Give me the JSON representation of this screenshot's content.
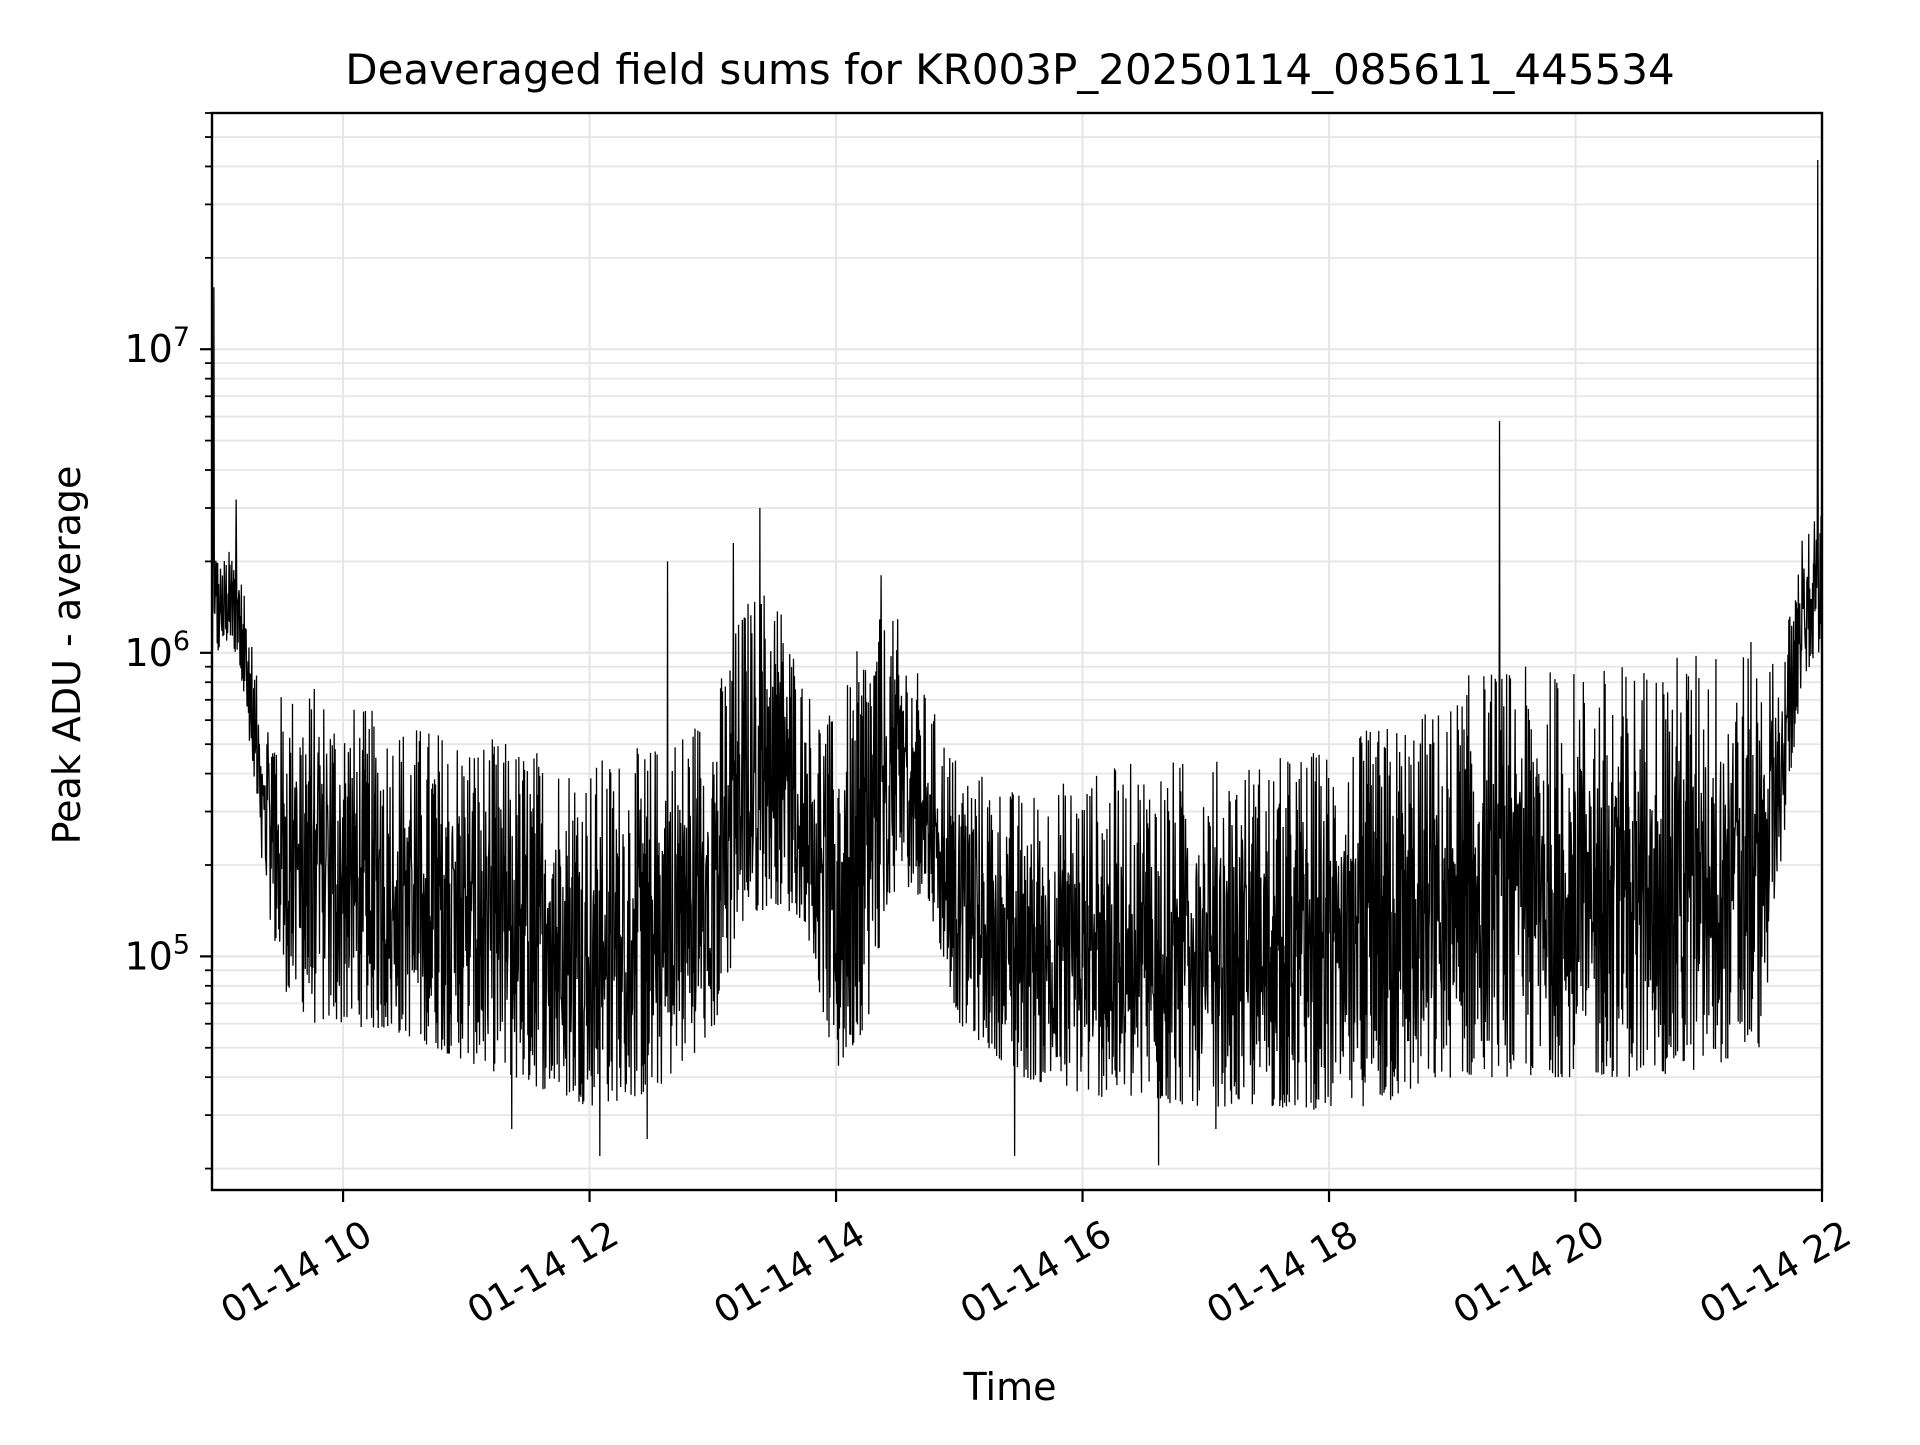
{
  "chart_data": {
    "type": "line",
    "title": "Deaveraged field sums for KR003P_20250114_085611_445534",
    "xlabel": "Time",
    "ylabel": "Peak ADU - average",
    "x_axis": {
      "kind": "datetime",
      "range": [
        "2025-01-14T08:56:11",
        "2025-01-14T22:00:00"
      ],
      "ticks": [
        {
          "value": "2025-01-14T10:00",
          "label": "01-14 10"
        },
        {
          "value": "2025-01-14T12:00",
          "label": "01-14 12"
        },
        {
          "value": "2025-01-14T14:00",
          "label": "01-14 14"
        },
        {
          "value": "2025-01-14T16:00",
          "label": "01-14 16"
        },
        {
          "value": "2025-01-14T18:00",
          "label": "01-14 18"
        },
        {
          "value": "2025-01-14T20:00",
          "label": "01-14 20"
        },
        {
          "value": "2025-01-14T22:00",
          "label": "01-14 22"
        }
      ],
      "tick_rotation_deg": 30
    },
    "y_axis": {
      "scale": "log",
      "range": [
        17000,
        60000000
      ],
      "ticks": [
        {
          "value": 100000,
          "base": "10",
          "exp": "5"
        },
        {
          "value": 1000000,
          "base": "10",
          "exp": "6"
        },
        {
          "value": 10000000,
          "base": "10",
          "exp": "7"
        }
      ]
    },
    "grid": true,
    "grid_color": "#e6e6e6",
    "line_color": "#000000",
    "legend": "none",
    "envelope": {
      "times": [
        "08:56",
        "09:00",
        "09:05",
        "09:10",
        "09:20",
        "09:30",
        "09:45",
        "10:00",
        "10:30",
        "11:00",
        "11:30",
        "12:00",
        "12:30",
        "13:00",
        "13:15",
        "13:30",
        "13:45",
        "14:00",
        "14:15",
        "14:30",
        "14:45",
        "15:00",
        "15:30",
        "16:00",
        "16:30",
        "17:00",
        "17:30",
        "18:00",
        "18:30",
        "19:00",
        "19:10",
        "19:30",
        "20:00",
        "20:30",
        "21:00",
        "21:30",
        "21:40",
        "21:50",
        "22:00"
      ],
      "low": [
        900000,
        1000000,
        1100000,
        900000,
        200000,
        80000,
        60000,
        60000,
        55000,
        45000,
        38000,
        32000,
        35000,
        55000,
        130000,
        150000,
        130000,
        40000,
        60000,
        180000,
        150000,
        60000,
        40000,
        35000,
        33000,
        32000,
        32000,
        31000,
        33000,
        40000,
        40000,
        40000,
        40000,
        40000,
        42000,
        50000,
        200000,
        800000,
        1000000
      ],
      "high": [
        3000000,
        2000000,
        2200000,
        2200000,
        650000,
        750000,
        800000,
        700000,
        600000,
        550000,
        500000,
        450000,
        500000,
        700000,
        1500000,
        1800000,
        800000,
        600000,
        1300000,
        1300000,
        700000,
        450000,
        350000,
        400000,
        450000,
        450000,
        450000,
        500000,
        600000,
        700000,
        900000,
        900000,
        900000,
        950000,
        1050000,
        1100000,
        900000,
        2500000,
        3000000
      ]
    },
    "spikes": [
      {
        "time": "08:57",
        "value": 16000000
      },
      {
        "time": "09:08",
        "value": 3200000
      },
      {
        "time": "12:38",
        "value": 2000000
      },
      {
        "time": "13:10",
        "value": 2300000
      },
      {
        "time": "13:23",
        "value": 3000000
      },
      {
        "time": "14:22",
        "value": 1800000
      },
      {
        "time": "19:23",
        "value": 5800000
      },
      {
        "time": "21:58",
        "value": 42000000
      }
    ],
    "dips": [
      {
        "time": "11:22",
        "value": 27000
      },
      {
        "time": "12:05",
        "value": 22000
      },
      {
        "time": "12:28",
        "value": 25000
      },
      {
        "time": "15:27",
        "value": 22000
      },
      {
        "time": "16:37",
        "value": 20500
      },
      {
        "time": "17:05",
        "value": 27000
      }
    ]
  }
}
